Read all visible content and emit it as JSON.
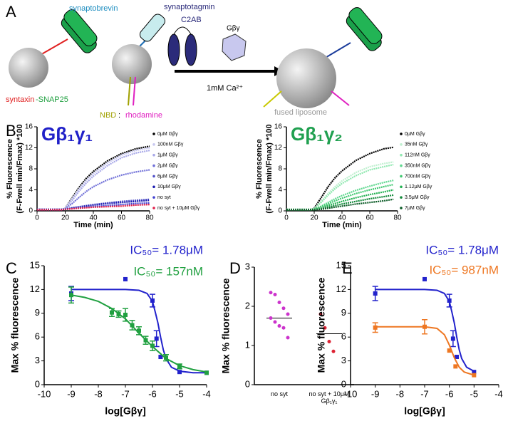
{
  "diagram": {
    "panel": "A",
    "synaptobrevin": "synaptobrevin",
    "synaptotagmin": "synaptotagmin",
    "c2ab": "C2AB",
    "gbg": "Gβγ",
    "syntaxin": "syntaxin",
    "snap25": "-SNAP25",
    "nbd": "NBD",
    "colon": " : ",
    "rhodamine": "rhodamine",
    "calcium": "1mM Ca²⁺",
    "fused": "fused liposome"
  },
  "chart_data": [
    {
      "type": "line",
      "panel": "B",
      "title": "Gβ₁γ₁",
      "title_color": "#2020c8",
      "ylabel": [
        "% Fluorescence",
        "(F-Fwell min/Fmax) *100"
      ],
      "xlabel": "Time (min)",
      "xlim": [
        0,
        80
      ],
      "xticks": [
        0,
        20,
        40,
        60,
        80
      ],
      "ylim": [
        0,
        16
      ],
      "yticks": [
        0,
        4,
        8,
        12,
        16
      ],
      "x": [
        0,
        10,
        18,
        20,
        25,
        30,
        35,
        40,
        50,
        60,
        70,
        80
      ],
      "series": [
        {
          "name": "0μM Gβγ",
          "color": "#000000",
          "values": [
            0.3,
            0.3,
            0.3,
            0.5,
            2.5,
            4.5,
            6.2,
            7.5,
            9.5,
            10.9,
            11.8,
            12.3
          ]
        },
        {
          "name": "100nM Gβγ",
          "color": "#c8c8f0",
          "values": [
            0.3,
            0.3,
            0.3,
            0.5,
            2.3,
            4.2,
            5.8,
            7.1,
            9.1,
            10.6,
            11.5,
            12.0
          ]
        },
        {
          "name": "1μM Gβγ",
          "color": "#a8a8e8",
          "values": [
            0.3,
            0.3,
            0.3,
            0.5,
            2.0,
            3.8,
            5.3,
            6.6,
            8.6,
            10.1,
            11.0,
            11.5
          ]
        },
        {
          "name": "2μM Gβγ",
          "color": "#7070d8",
          "values": [
            0.3,
            0.3,
            0.3,
            0.4,
            1.4,
            2.6,
            3.7,
            4.6,
            5.9,
            6.8,
            7.4,
            7.8
          ]
        },
        {
          "name": "6μM Gβγ",
          "color": "#5050c8",
          "values": [
            0.3,
            0.3,
            0.3,
            0.3,
            0.6,
            0.8,
            1.0,
            1.2,
            1.5,
            1.8,
            2.0,
            2.2
          ]
        },
        {
          "name": "10μM Gβγ",
          "color": "#1a1ab0",
          "values": [
            0.2,
            0.2,
            0.2,
            0.3,
            0.5,
            0.7,
            0.9,
            1.1,
            1.4,
            1.6,
            1.8,
            2.0
          ]
        },
        {
          "name": "no syt",
          "color": "#4040d0",
          "values": [
            0.2,
            0.2,
            0.2,
            0.3,
            0.4,
            0.6,
            0.7,
            0.8,
            1.0,
            1.2,
            1.4,
            1.5
          ]
        },
        {
          "name": "no syt + 10μM Gβγ",
          "color": "#e0204a",
          "values": [
            0.2,
            0.2,
            0.2,
            0.3,
            0.4,
            0.5,
            0.6,
            0.7,
            0.8,
            0.9,
            1.1,
            1.2
          ]
        }
      ]
    },
    {
      "type": "line",
      "title": "Gβ₁γ₂",
      "title_color": "#20a050",
      "ylabel": [
        "% Fluorescence",
        "(F-Fwell min/Fmax) *100"
      ],
      "xlabel": "Time (min)",
      "xlim": [
        0,
        80
      ],
      "xticks": [
        0,
        20,
        40,
        60,
        80
      ],
      "ylim": [
        0,
        16
      ],
      "yticks": [
        0,
        4,
        8,
        12,
        16
      ],
      "x": [
        0,
        10,
        18,
        20,
        25,
        30,
        35,
        40,
        50,
        60,
        70,
        77
      ],
      "series": [
        {
          "name": "0μM Gβγ",
          "color": "#000000",
          "values": [
            0.3,
            0.3,
            0.3,
            0.5,
            2.5,
            4.6,
            6.3,
            7.6,
            9.6,
            10.9,
            11.8,
            12.1
          ]
        },
        {
          "name": "35nM Gβγ",
          "color": "#c0f0d0",
          "values": [
            0.3,
            0.3,
            0.3,
            0.4,
            1.8,
            3.3,
            4.6,
            5.7,
            7.3,
            8.4,
            9.0,
            9.3
          ]
        },
        {
          "name": "112nM Gβγ",
          "color": "#90e8b0",
          "values": [
            0.3,
            0.3,
            0.3,
            0.4,
            1.6,
            3.0,
            4.2,
            5.2,
            6.7,
            7.8,
            8.4,
            8.8
          ]
        },
        {
          "name": "350nM Gβγ",
          "color": "#60d890",
          "values": [
            0.2,
            0.2,
            0.2,
            0.3,
            0.9,
            1.6,
            2.3,
            2.9,
            3.9,
            4.7,
            5.4,
            5.8
          ]
        },
        {
          "name": "700nM Gβγ",
          "color": "#40c870",
          "values": [
            0.2,
            0.2,
            0.2,
            0.3,
            0.8,
            1.3,
            1.9,
            2.4,
            3.3,
            4.0,
            4.6,
            5.0
          ]
        },
        {
          "name": "1.12μM Gβγ",
          "color": "#20b050",
          "values": [
            0.2,
            0.2,
            0.2,
            0.3,
            0.6,
            1.0,
            1.4,
            1.8,
            2.5,
            3.1,
            3.6,
            4.0
          ]
        },
        {
          "name": "3.5μM Gβγ",
          "color": "#108838",
          "values": [
            0.2,
            0.2,
            0.2,
            0.2,
            0.4,
            0.7,
            1.0,
            1.3,
            1.8,
            2.3,
            2.7,
            3.0
          ]
        },
        {
          "name": "7μM Gβγ",
          "color": "#0a5a25",
          "values": [
            0.2,
            0.2,
            0.2,
            0.2,
            0.3,
            0.5,
            0.7,
            0.9,
            1.3,
            1.6,
            1.9,
            2.2
          ]
        }
      ]
    },
    {
      "type": "scatter",
      "panel": "C",
      "ylabel": [
        "Max % fluorescence"
      ],
      "xlabel": "log[Gβγ]",
      "xlim": [
        -10,
        -4
      ],
      "xticks": [
        -10,
        -9,
        -8,
        -7,
        -6,
        -5,
        -4
      ],
      "ylim": [
        0,
        15
      ],
      "yticks": [
        0,
        3,
        6,
        9,
        12,
        15
      ],
      "annotations": [
        {
          "text": "IC₅₀= 1.78μM",
          "color": "#2222cc"
        },
        {
          "text": "IC₅₀= 157nM",
          "color": "#20a040"
        }
      ],
      "series": [
        {
          "color": "#2222cc",
          "x": [
            -9,
            -7,
            -6,
            -5.85,
            -5.7,
            -5,
            -4
          ],
          "values": [
            11.5,
            13.3,
            10.6,
            5.8,
            3.5,
            1.6,
            1.5
          ],
          "errors": [
            0.9,
            null,
            0.8,
            1.0,
            null,
            null,
            null
          ],
          "fit": {
            "x": [
              -9,
              -7,
              -6.5,
              -6.2,
              -6,
              -5.9,
              -5.8,
              -5.7,
              -5.6,
              -5.5,
              -5.3,
              -5,
              -4.5,
              -4
            ],
            "values": [
              12,
              12,
              11.9,
              11.5,
              10.5,
              9.2,
              7.8,
              6,
              4.4,
              3.3,
              2.2,
              1.7,
              1.5,
              1.5
            ]
          }
        },
        {
          "color": "#20a040",
          "x": [
            -9,
            -7.5,
            -7.25,
            -7,
            -6.75,
            -6.5,
            -6.25,
            -6,
            -5.5,
            -5,
            -4
          ],
          "values": [
            11.3,
            9.1,
            8.9,
            8.8,
            7.5,
            6.8,
            5.6,
            4.9,
            3.4,
            2.3,
            1.5
          ],
          "errors": [
            1.0,
            0.5,
            0.4,
            0.8,
            0.6,
            0.5,
            0.5,
            0.6,
            0.4,
            0.3,
            null
          ],
          "fit": {
            "x": [
              -9,
              -8.5,
              -8,
              -7.5,
              -7,
              -6.5,
              -6,
              -5.5,
              -5,
              -4.5,
              -4
            ],
            "values": [
              11.3,
              11.0,
              10.5,
              9.6,
              8.3,
              6.5,
              4.8,
              3.3,
              2.4,
              1.9,
              1.6
            ]
          }
        }
      ]
    },
    {
      "type": "strip",
      "panel": "D",
      "ylabel": [
        "Max % fluorescence"
      ],
      "ylim": [
        0,
        3
      ],
      "yticks": [
        0,
        1,
        2,
        3
      ],
      "categories": [
        "no syt",
        "no syt + 10μM Gβ₁γ₁"
      ],
      "means": [
        1.7,
        1.3
      ],
      "series": [
        {
          "color": "#cc33cc",
          "values": [
            2.35,
            2.3,
            2.1,
            1.95,
            1.8,
            1.7,
            1.6,
            1.5,
            1.45,
            1.2
          ]
        },
        {
          "color": "#dd2233",
          "values": [
            1.8,
            1.45,
            1.1,
            0.85
          ]
        }
      ]
    },
    {
      "type": "scatter",
      "panel": "E",
      "ylabel": [
        "Max % fluorescence"
      ],
      "xlabel": "log[Gβγ]",
      "xlim": [
        -10,
        -4
      ],
      "xticks": [
        -10,
        -9,
        -8,
        -7,
        -6,
        -5,
        -4
      ],
      "ylim": [
        0,
        15
      ],
      "yticks": [
        0,
        3,
        6,
        9,
        12,
        15
      ],
      "annotations": [
        {
          "text": "IC₅₀= 1.78μM",
          "color": "#2222cc"
        },
        {
          "text": "IC₅₀= 987nM",
          "color": "#ee7722"
        }
      ],
      "series": [
        {
          "color": "#2222cc",
          "x": [
            -9,
            -7,
            -6,
            -5.85,
            -5.7,
            -5
          ],
          "values": [
            11.5,
            13.3,
            10.6,
            5.8,
            3.5,
            1.6
          ],
          "errors": [
            0.9,
            null,
            0.8,
            1.0,
            null,
            null
          ],
          "fit": {
            "x": [
              -9,
              -7,
              -6.5,
              -6.2,
              -6,
              -5.9,
              -5.8,
              -5.7,
              -5.6,
              -5.5,
              -5.3,
              -5
            ],
            "values": [
              12,
              12,
              11.9,
              11.5,
              10.5,
              9.2,
              7.8,
              6,
              4.4,
              3.3,
              2.2,
              1.7
            ]
          }
        },
        {
          "color": "#ee7722",
          "x": [
            -9,
            -7,
            -6,
            -5.75,
            -5
          ],
          "values": [
            7.2,
            7.3,
            4.3,
            2.3,
            1.2
          ],
          "errors": [
            0.6,
            0.9,
            null,
            null,
            null
          ],
          "fit": {
            "x": [
              -9,
              -7,
              -6.5,
              -6.2,
              -6,
              -5.8,
              -5.6,
              -5.4,
              -5
            ],
            "values": [
              7.3,
              7.3,
              7.1,
              6.3,
              5,
              3.4,
              2.2,
              1.6,
              1.2
            ]
          }
        }
      ]
    }
  ]
}
